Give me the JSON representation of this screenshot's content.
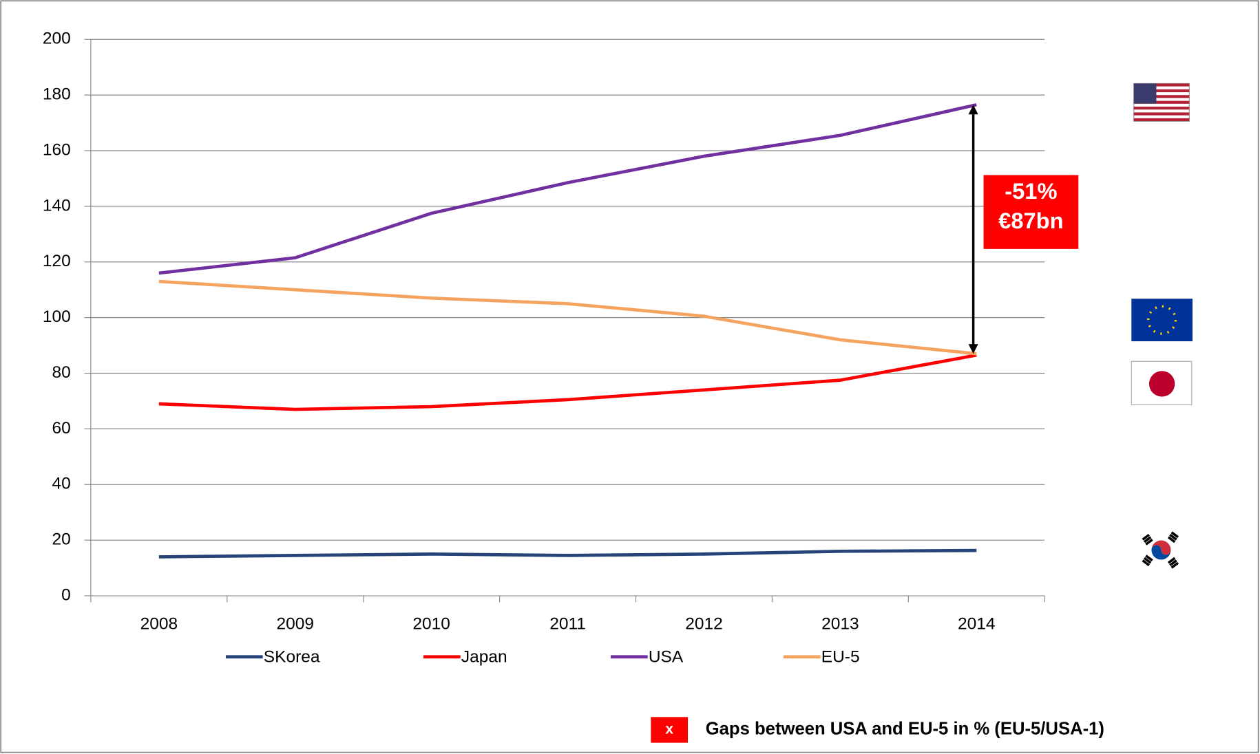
{
  "chart_data": {
    "type": "line",
    "categories": [
      "2008",
      "2009",
      "2010",
      "2011",
      "2012",
      "2013",
      "2014"
    ],
    "series": [
      {
        "name": "SKorea",
        "color": "#264478",
        "values": [
          14,
          14.5,
          15,
          14.5,
          15,
          16,
          16.3
        ]
      },
      {
        "name": "Japan",
        "color": "#ff0000",
        "values": [
          69,
          67,
          68,
          70.5,
          74,
          77.5,
          86.5
        ]
      },
      {
        "name": "USA",
        "color": "#7030a0",
        "values": [
          116,
          121.5,
          137.5,
          148.5,
          158,
          165.5,
          176.5
        ]
      },
      {
        "name": "EU-5",
        "color": "#f4a460",
        "values": [
          113,
          110,
          107,
          105,
          100.5,
          92,
          87
        ]
      }
    ],
    "ylim": [
      0,
      200
    ],
    "yticks": [
      0,
      20,
      40,
      60,
      80,
      100,
      120,
      140,
      160,
      180,
      200
    ],
    "grid": true,
    "legend": "bottom",
    "annotations": [
      "-51%",
      "€87bn"
    ],
    "footnote": {
      "marker": "x",
      "text": "Gaps between USA and EU-5 in % (EU-5/USA-1)"
    }
  }
}
